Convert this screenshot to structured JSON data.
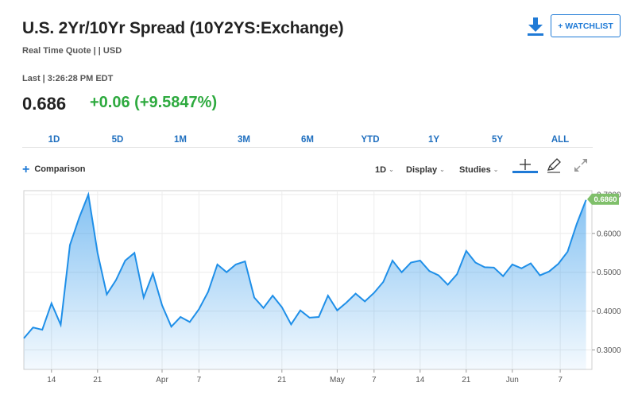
{
  "header": {
    "title": "U.S. 2Yr/10Yr Spread (10Y2YS:Exchange)",
    "subquote": "Real Time Quote | | USD",
    "last_time": "Last | 3:26:28 PM EDT",
    "price": "0.686",
    "change": "+0.06 (+9.5847%)",
    "watchlist_label": "+ WATCHLIST",
    "change_color": "#2eaa3f"
  },
  "ranges": [
    "1D",
    "5D",
    "1M",
    "3M",
    "6M",
    "YTD",
    "1Y",
    "5Y",
    "ALL"
  ],
  "toolbar": {
    "comparison_label": "Comparison",
    "interval_label": "1D",
    "display_label": "Display",
    "studies_label": "Studies"
  },
  "chart_data": {
    "type": "area",
    "title": "",
    "xlabel": "",
    "ylabel": "",
    "ylim": [
      0.25,
      0.71
    ],
    "yticks": [
      "0.3000",
      "0.4000",
      "0.5000",
      "0.6000",
      "0.7000"
    ],
    "ytick_values": [
      0.3,
      0.4,
      0.5,
      0.6,
      0.7
    ],
    "xtick_labels": [
      "14",
      "21",
      "Apr",
      "7",
      "21",
      "May",
      "7",
      "14",
      "21",
      "Jun",
      "7"
    ],
    "xtick_index": [
      3,
      8,
      15,
      19,
      28,
      34,
      38,
      43,
      48,
      53,
      58.2
    ],
    "last_value_label": "0.6860",
    "line_color": "#1f8fe8",
    "label_color": "#7fbf6a",
    "values": [
      0.33,
      0.358,
      0.352,
      0.42,
      0.365,
      0.57,
      0.64,
      0.7,
      0.55,
      0.443,
      0.48,
      0.53,
      0.55,
      0.435,
      0.497,
      0.415,
      0.36,
      0.385,
      0.372,
      0.405,
      0.45,
      0.52,
      0.5,
      0.52,
      0.528,
      0.435,
      0.408,
      0.44,
      0.41,
      0.366,
      0.402,
      0.383,
      0.385,
      0.44,
      0.402,
      0.422,
      0.445,
      0.425,
      0.447,
      0.475,
      0.53,
      0.5,
      0.525,
      0.53,
      0.503,
      0.492,
      0.468,
      0.495,
      0.555,
      0.525,
      0.513,
      0.512,
      0.49,
      0.52,
      0.51,
      0.523,
      0.492,
      0.502,
      0.522,
      0.553,
      0.625,
      0.686
    ]
  }
}
